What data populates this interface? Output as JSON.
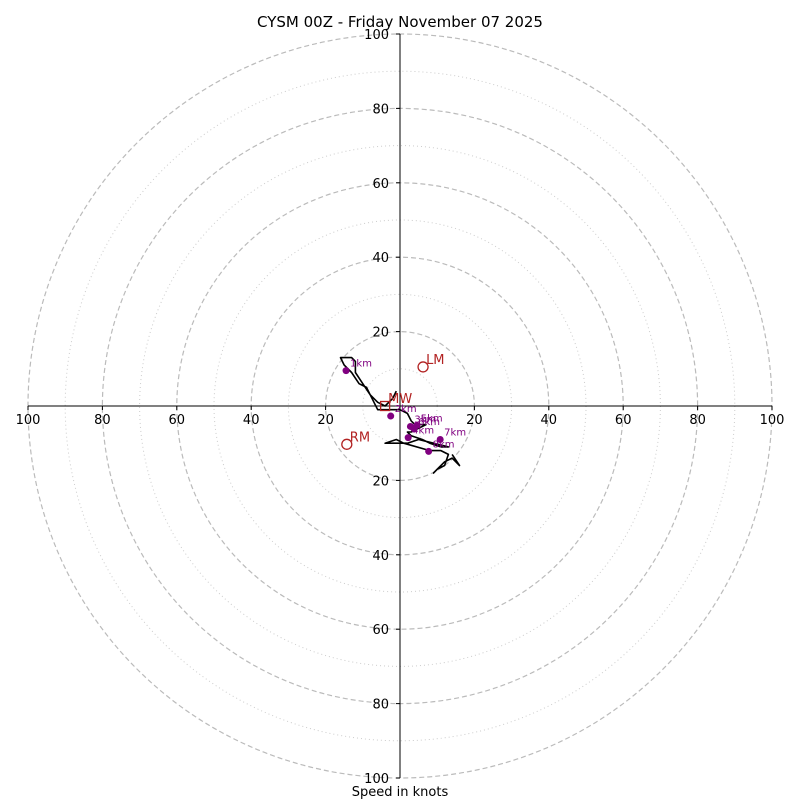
{
  "chart_data": {
    "type": "scatter",
    "subtype": "hodograph",
    "title": "CYSM 00Z - Friday November 07 2025",
    "xlabel": "Speed in knots",
    "ylabel": "",
    "xlim": [
      -100,
      100
    ],
    "ylim": [
      -100,
      100
    ],
    "rings_major": [
      20,
      40,
      60,
      80,
      100
    ],
    "rings_minor": [
      10,
      30,
      50,
      70,
      90
    ],
    "x_ticks": [
      "100",
      "80",
      "60",
      "40",
      "20",
      "20",
      "40",
      "60",
      "80",
      "100"
    ],
    "y_ticks_top": [
      "100",
      "80",
      "60",
      "40",
      "20"
    ],
    "y_ticks_bottom": [
      "20",
      "40",
      "60",
      "80",
      "100"
    ],
    "grid": true,
    "colors": {
      "trace": "#000000",
      "level_points": "#800080",
      "storm_motion": "#b22222",
      "major_ring": "#bbbbbb",
      "minor_ring": "#cccccc"
    },
    "hodograph_trace": [
      [
        -1,
        4
      ],
      [
        -2,
        2
      ],
      [
        -4,
        0
      ],
      [
        -6,
        1
      ],
      [
        -8,
        3
      ],
      [
        -10,
        6
      ],
      [
        -12,
        9
      ],
      [
        -12,
        12
      ],
      [
        -13,
        13
      ],
      [
        -16,
        13
      ],
      [
        -15,
        11
      ],
      [
        -13,
        9
      ],
      [
        -11,
        6
      ],
      [
        -9,
        5
      ],
      [
        -8,
        3
      ],
      [
        -6,
        -1
      ],
      [
        -3,
        -1
      ],
      [
        0,
        -1
      ],
      [
        2,
        -2
      ],
      [
        3,
        -4
      ],
      [
        4,
        -5
      ],
      [
        7,
        -5
      ],
      [
        5,
        -6
      ],
      [
        3,
        -7
      ],
      [
        2,
        -7
      ],
      [
        3,
        -8
      ],
      [
        6,
        -9
      ],
      [
        8,
        -10
      ],
      [
        11,
        -11
      ],
      [
        13,
        -11
      ],
      [
        9,
        -10
      ],
      [
        5,
        -9
      ],
      [
        2,
        -10
      ],
      [
        -4,
        -10
      ],
      [
        -1,
        -9
      ],
      [
        1,
        -10
      ],
      [
        8,
        -12
      ],
      [
        11,
        -12
      ],
      [
        13,
        -13
      ],
      [
        12,
        -16
      ],
      [
        10,
        -17
      ],
      [
        9,
        -18
      ],
      [
        12,
        -15
      ],
      [
        14,
        -14
      ],
      [
        16,
        -16
      ],
      [
        14,
        -13
      ]
    ],
    "levels": [
      {
        "label": "1km",
        "x": -14.5,
        "y": 9.5
      },
      {
        "label": "2km",
        "x": -2.5,
        "y": -2.7
      },
      {
        "label": "3km",
        "x": 2.8,
        "y": -5.5
      },
      {
        "label": "4km",
        "x": 2.2,
        "y": -8.5
      },
      {
        "label": "5km",
        "x": 4.5,
        "y": -5.2
      },
      {
        "label": "6km",
        "x": 3.8,
        "y": -6.2
      },
      {
        "label": "7km",
        "x": 10.8,
        "y": -9.0
      },
      {
        "label": "8km",
        "x": 7.7,
        "y": -12.2
      }
    ],
    "storm_motion": [
      {
        "label": "LM",
        "x": 6.2,
        "y": 10.5,
        "marker": "circle"
      },
      {
        "label": "RM",
        "x": -14.3,
        "y": -10.3,
        "marker": "circle"
      },
      {
        "label": "MW",
        "x": -4.0,
        "y": 0.0,
        "marker": "square"
      }
    ]
  }
}
